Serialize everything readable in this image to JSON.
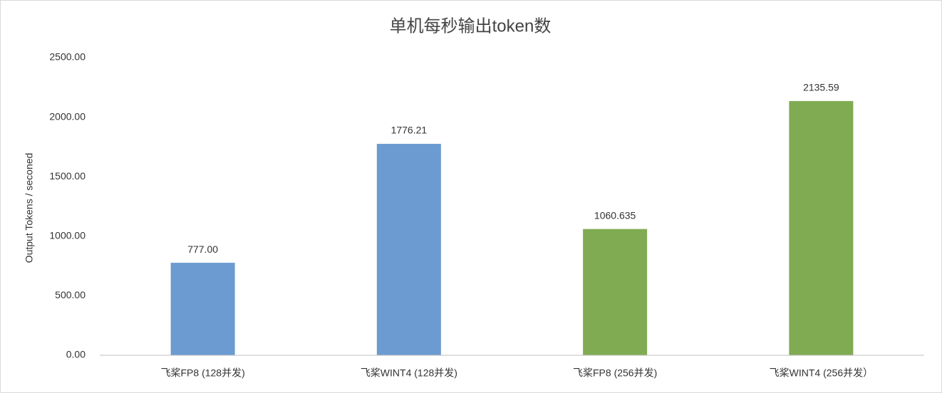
{
  "chart_data": {
    "type": "bar",
    "title": "单机每秒输出token数",
    "y_label": "Output Tokens / seconed",
    "categories": [
      "飞桨FP8 (128并发)",
      "飞桨WINT4 (128并发)",
      "飞桨FP8 (256并发)",
      "飞桨WINT4 (256并发）"
    ],
    "values": [
      777,
      1776.21,
      1060.635,
      2135.59
    ],
    "value_labels": [
      "777.00",
      "1776.21",
      "1060.635",
      "2135.59"
    ],
    "colors": [
      "#6b9bd1",
      "#6b9bd1",
      "#80ab53",
      "#80ab53"
    ],
    "ylim": [
      0,
      2500
    ],
    "yticks": [
      {
        "value": 0,
        "label": "0.00"
      },
      {
        "value": 500,
        "label": "500.00"
      },
      {
        "value": 1000,
        "label": "1000.00"
      },
      {
        "value": 1500,
        "label": "1500.00"
      },
      {
        "value": 2000,
        "label": "2000.00"
      },
      {
        "value": 2500,
        "label": "2500.00"
      }
    ],
    "grid": false
  }
}
